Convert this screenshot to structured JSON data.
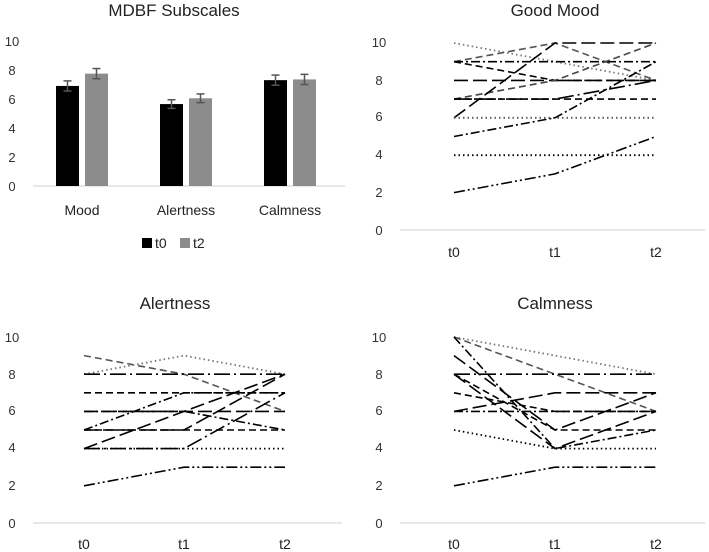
{
  "chart_data": [
    {
      "type": "bar",
      "title": "MDBF Subscales",
      "categories": [
        "Mood",
        "Alertness",
        "Calmness"
      ],
      "series": [
        {
          "name": "t0",
          "color": "#000000",
          "values": [
            6.9,
            5.65,
            7.3
          ],
          "errors": [
            0.35,
            0.3,
            0.35
          ]
        },
        {
          "name": "t2",
          "color": "#8c8c8c",
          "values": [
            7.75,
            6.05,
            7.35
          ],
          "errors": [
            0.35,
            0.3,
            0.35
          ]
        }
      ],
      "yticks": [
        0,
        2,
        4,
        6,
        8,
        10
      ],
      "ylim": [
        0,
        10
      ],
      "legend": "bottom"
    },
    {
      "type": "line",
      "title": "Good Mood",
      "x": [
        "t0",
        "t1",
        "t2"
      ],
      "yticks": [
        0,
        2,
        4,
        6,
        8,
        10
      ],
      "ylim": [
        0,
        10
      ],
      "series": [
        {
          "values": [
            10,
            9,
            8
          ],
          "style": "dot",
          "color": "#777777"
        },
        {
          "values": [
            9,
            10,
            8
          ],
          "style": "dash",
          "color": "#555555"
        },
        {
          "values": [
            9,
            9,
            9
          ],
          "style": "dashdot",
          "color": "#000000"
        },
        {
          "values": [
            9,
            8,
            8
          ],
          "style": "dash",
          "color": "#000000"
        },
        {
          "values": [
            8,
            8,
            8
          ],
          "style": "longdash",
          "color": "#000000"
        },
        {
          "values": [
            7,
            8,
            10
          ],
          "style": "dash",
          "color": "#444444"
        },
        {
          "values": [
            7,
            7,
            7
          ],
          "style": "dash",
          "color": "#000000"
        },
        {
          "values": [
            7,
            7,
            8
          ],
          "style": "longdashdot",
          "color": "#000000"
        },
        {
          "values": [
            6,
            10,
            10
          ],
          "style": "longdash",
          "color": "#000000"
        },
        {
          "values": [
            6,
            6,
            6
          ],
          "style": "dot",
          "color": "#555555"
        },
        {
          "values": [
            5,
            6,
            9
          ],
          "style": "dashdot",
          "color": "#000000"
        },
        {
          "values": [
            4,
            4,
            4
          ],
          "style": "dot",
          "color": "#000000"
        },
        {
          "values": [
            2,
            3,
            5
          ],
          "style": "dashdotdot",
          "color": "#000000"
        }
      ]
    },
    {
      "type": "line",
      "title": "Alertness",
      "x": [
        "t0",
        "t1",
        "t2"
      ],
      "yticks": [
        0,
        2,
        4,
        6,
        8,
        10
      ],
      "ylim": [
        0,
        10
      ],
      "series": [
        {
          "values": [
            9,
            8,
            6
          ],
          "style": "dash",
          "color": "#555555"
        },
        {
          "values": [
            8,
            9,
            8
          ],
          "style": "dot",
          "color": "#777777"
        },
        {
          "values": [
            8,
            8,
            8
          ],
          "style": "longdashdot",
          "color": "#000000"
        },
        {
          "values": [
            7,
            7,
            7
          ],
          "style": "dash",
          "color": "#000000"
        },
        {
          "values": [
            6,
            6,
            6
          ],
          "style": "longdash",
          "color": "#000000"
        },
        {
          "values": [
            6,
            6,
            5
          ],
          "style": "dashdot",
          "color": "#000000"
        },
        {
          "values": [
            5,
            5,
            8
          ],
          "style": "longdash",
          "color": "#000000"
        },
        {
          "values": [
            5,
            5,
            5
          ],
          "style": "dash",
          "color": "#000000"
        },
        {
          "values": [
            5,
            7,
            7
          ],
          "style": "dashdot",
          "color": "#000000"
        },
        {
          "values": [
            4,
            6,
            8
          ],
          "style": "longdash",
          "color": "#000000"
        },
        {
          "values": [
            4,
            4,
            4
          ],
          "style": "dot",
          "color": "#000000"
        },
        {
          "values": [
            4,
            4,
            7
          ],
          "style": "longdashdot",
          "color": "#000000"
        },
        {
          "values": [
            2,
            3,
            3
          ],
          "style": "dashdotdot",
          "color": "#000000"
        }
      ]
    },
    {
      "type": "line",
      "title": "Calmness",
      "x": [
        "t0",
        "t1",
        "t2"
      ],
      "yticks": [
        0,
        2,
        4,
        6,
        8,
        10
      ],
      "ylim": [
        0,
        10
      ],
      "series": [
        {
          "values": [
            10,
            9,
            8
          ],
          "style": "dot",
          "color": "#777777"
        },
        {
          "values": [
            10,
            8,
            6
          ],
          "style": "dash",
          "color": "#555555"
        },
        {
          "values": [
            10,
            4,
            5
          ],
          "style": "dashdot",
          "color": "#000000"
        },
        {
          "values": [
            9,
            5,
            7
          ],
          "style": "longdash",
          "color": "#000000"
        },
        {
          "values": [
            8,
            8,
            8
          ],
          "style": "longdashdot",
          "color": "#000000"
        },
        {
          "values": [
            8,
            5,
            5
          ],
          "style": "dash",
          "color": "#000000"
        },
        {
          "values": [
            8,
            4,
            6
          ],
          "style": "longdash",
          "color": "#000000"
        },
        {
          "values": [
            7,
            6,
            6
          ],
          "style": "dash",
          "color": "#000000"
        },
        {
          "values": [
            6,
            7,
            7
          ],
          "style": "longdash",
          "color": "#000000"
        },
        {
          "values": [
            6,
            6,
            6
          ],
          "style": "dashdot",
          "color": "#000000"
        },
        {
          "values": [
            5,
            4,
            4
          ],
          "style": "dot",
          "color": "#000000"
        },
        {
          "values": [
            2,
            3,
            3
          ],
          "style": "dashdotdot",
          "color": "#000000"
        }
      ]
    }
  ]
}
